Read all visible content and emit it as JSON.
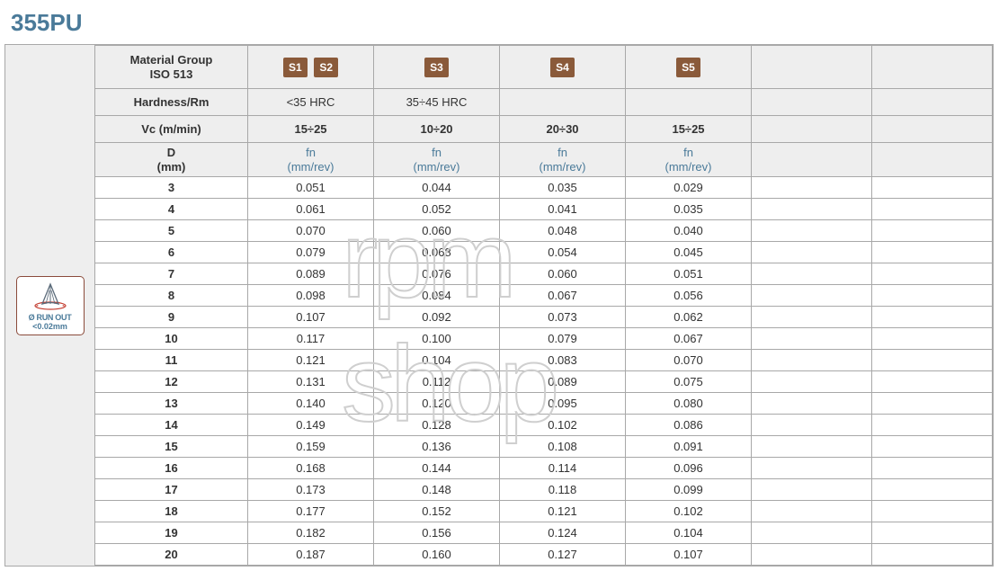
{
  "title": "355PU",
  "runout": {
    "line1": "Ø RUN OUT",
    "line2": "<0.02mm"
  },
  "header": {
    "material_group": "Material Group\nISO 513",
    "hardness_label": "Hardness/Rm",
    "vc_label": "Vc (m/min)",
    "d_label": "D\n(mm)",
    "fn_label": "fn\n(mm/rev)"
  },
  "badges": {
    "col1": [
      "S1",
      "S2"
    ],
    "col2": [
      "S3"
    ],
    "col3": [
      "S4"
    ],
    "col4": [
      "S5"
    ]
  },
  "hardness": {
    "col1": "<35 HRC",
    "col2": "35÷45 HRC",
    "col3": "",
    "col4": ""
  },
  "vc": {
    "col1": "15÷25",
    "col2": "10÷20",
    "col3": "20÷30",
    "col4": "15÷25"
  },
  "rows": [
    {
      "d": "3",
      "v": [
        "0.051",
        "0.044",
        "0.035",
        "0.029"
      ]
    },
    {
      "d": "4",
      "v": [
        "0.061",
        "0.052",
        "0.041",
        "0.035"
      ]
    },
    {
      "d": "5",
      "v": [
        "0.070",
        "0.060",
        "0.048",
        "0.040"
      ]
    },
    {
      "d": "6",
      "v": [
        "0.079",
        "0.068",
        "0.054",
        "0.045"
      ]
    },
    {
      "d": "7",
      "v": [
        "0.089",
        "0.076",
        "0.060",
        "0.051"
      ]
    },
    {
      "d": "8",
      "v": [
        "0.098",
        "0.084",
        "0.067",
        "0.056"
      ]
    },
    {
      "d": "9",
      "v": [
        "0.107",
        "0.092",
        "0.073",
        "0.062"
      ]
    },
    {
      "d": "10",
      "v": [
        "0.117",
        "0.100",
        "0.079",
        "0.067"
      ]
    },
    {
      "d": "11",
      "v": [
        "0.121",
        "0.104",
        "0.083",
        "0.070"
      ]
    },
    {
      "d": "12",
      "v": [
        "0.131",
        "0.112",
        "0.089",
        "0.075"
      ]
    },
    {
      "d": "13",
      "v": [
        "0.140",
        "0.120",
        "0.095",
        "0.080"
      ]
    },
    {
      "d": "14",
      "v": [
        "0.149",
        "0.128",
        "0.102",
        "0.086"
      ]
    },
    {
      "d": "15",
      "v": [
        "0.159",
        "0.136",
        "0.108",
        "0.091"
      ]
    },
    {
      "d": "16",
      "v": [
        "0.168",
        "0.144",
        "0.114",
        "0.096"
      ]
    },
    {
      "d": "17",
      "v": [
        "0.173",
        "0.148",
        "0.118",
        "0.099"
      ]
    },
    {
      "d": "18",
      "v": [
        "0.177",
        "0.152",
        "0.121",
        "0.102"
      ]
    },
    {
      "d": "19",
      "v": [
        "0.182",
        "0.156",
        "0.124",
        "0.104"
      ]
    },
    {
      "d": "20",
      "v": [
        "0.187",
        "0.160",
        "0.127",
        "0.107"
      ]
    }
  ],
  "colors": {
    "title": "#4a7a99",
    "badge_bg": "#8a5a3a",
    "border": "#a8a8a8",
    "header_bg": "#eeeeee",
    "runout_border": "#8b4b3b"
  }
}
